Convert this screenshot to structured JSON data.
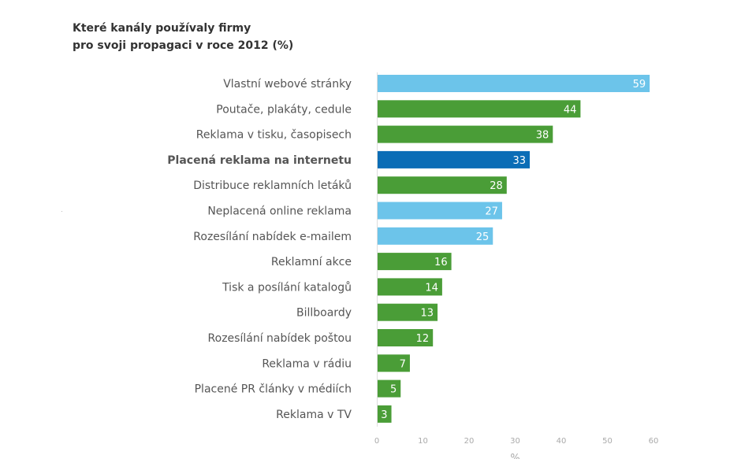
{
  "title": {
    "line1": "Které kanály používaly firmy",
    "line2": "pro svoji propagaci v roce 2012 (%)"
  },
  "chart_data": {
    "type": "bar",
    "orientation": "horizontal",
    "categories": [
      "Vlastní webové stránky",
      "Poutače, plakáty, cedule",
      "Reklama v tisku, časopisech",
      "Placená reklama na internetu",
      "Distribuce reklamních letáků",
      "Neplacená online reklama",
      "Rozesílání nabídek e-mailem",
      "Reklamní akce",
      "Tisk a posílání katalogů",
      "Billboardy",
      "Rozesílání nabídek poštou",
      "Reklama v rádiu",
      "Placené PR články v médiích",
      "Reklama v TV"
    ],
    "values": [
      59,
      44,
      38,
      33,
      28,
      27,
      25,
      16,
      14,
      13,
      12,
      7,
      5,
      3
    ],
    "bar_colors": [
      "#6cc4ea",
      "#4a9d37",
      "#4a9d37",
      "#0b6db6",
      "#4a9d37",
      "#6cc4ea",
      "#6cc4ea",
      "#4a9d37",
      "#4a9d37",
      "#4a9d37",
      "#4a9d37",
      "#4a9d37",
      "#4a9d37",
      "#4a9d37"
    ],
    "highlighted_category": "Placená reklama na internetu",
    "xlim": [
      0,
      60
    ],
    "xticks": [
      0,
      10,
      20,
      30,
      40,
      50,
      60
    ],
    "xlabel": "%",
    "grid": false,
    "colors": {
      "light_blue": "#6cc4ea",
      "green": "#4a9d37",
      "dark_blue": "#0b6db6",
      "label_text": "#555555",
      "value_text": "#ffffff",
      "tick_text": "#aaaaaa"
    }
  }
}
